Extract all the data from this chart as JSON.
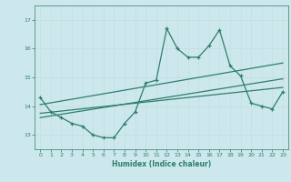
{
  "xlabel": "Humidex (Indice chaleur)",
  "background_color": "#cce8ec",
  "grid_color": "#b0d8dc",
  "line_color": "#2e7d6e",
  "xlim": [
    -0.5,
    23.5
  ],
  "ylim": [
    12.5,
    17.5
  ],
  "yticks": [
    13,
    14,
    15,
    16,
    17
  ],
  "xticks": [
    0,
    1,
    2,
    3,
    4,
    5,
    6,
    7,
    8,
    9,
    10,
    11,
    12,
    13,
    14,
    15,
    16,
    17,
    18,
    19,
    20,
    21,
    22,
    23
  ],
  "main_series_x": [
    0,
    1,
    2,
    3,
    4,
    5,
    6,
    7,
    8,
    9,
    10,
    11,
    12,
    13,
    14,
    15,
    16,
    17,
    18,
    19,
    20,
    21,
    22,
    23
  ],
  "main_series_y": [
    14.3,
    13.8,
    13.6,
    13.4,
    13.3,
    13.0,
    12.9,
    12.9,
    13.4,
    13.8,
    14.8,
    14.9,
    16.7,
    16.0,
    15.7,
    15.7,
    16.1,
    16.65,
    15.4,
    15.05,
    14.1,
    14.0,
    13.9,
    14.5
  ],
  "upper_line_x": [
    0,
    23
  ],
  "upper_line_y": [
    14.05,
    15.5
  ],
  "lower_line_x": [
    0,
    23
  ],
  "lower_line_y": [
    13.75,
    14.65
  ],
  "mid_line_x": [
    0,
    23
  ],
  "mid_line_y": [
    13.6,
    14.95
  ]
}
